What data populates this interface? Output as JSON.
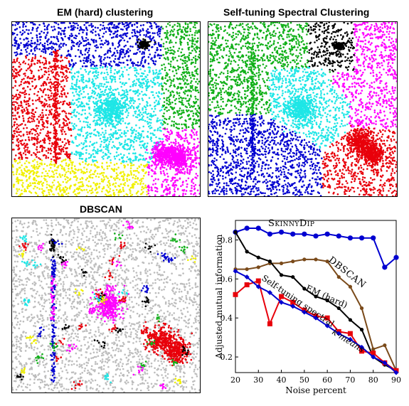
{
  "panels": {
    "em_title": "EM (hard) clustering",
    "spectral_title": "Self-tuning Spectral Clustering",
    "dbscan_title": "DBSCAN"
  },
  "colors": {
    "red": "#e8000b",
    "blue": "#0000d0",
    "green": "#12b01a",
    "cyan": "#1ee6e6",
    "magenta": "#ff00ff",
    "yellow": "#f0f000",
    "black": "#000000",
    "gray": "#bdbdbd",
    "brown": "#7a4a1a"
  },
  "chart_data": [
    {
      "type": "scatter",
      "title": "EM (hard) clustering",
      "clusters": [
        "red",
        "blue",
        "green",
        "cyan",
        "magenta",
        "yellow",
        "black"
      ]
    },
    {
      "type": "scatter",
      "title": "Self-tuning Spectral Clustering",
      "clusters": [
        "green",
        "blue",
        "black",
        "magenta",
        "cyan",
        "red"
      ]
    },
    {
      "type": "scatter",
      "title": "DBSCAN",
      "clusters": [
        "gray",
        "magenta",
        "blue",
        "red",
        "black",
        "cyan",
        "yellow",
        "green"
      ]
    },
    {
      "type": "line",
      "title": "",
      "xlabel": "Noise percent",
      "ylabel": "Adjusted mutual information",
      "xlim": [
        20,
        90
      ],
      "ylim": [
        0.12,
        0.9
      ],
      "x_ticks": [
        20,
        30,
        40,
        50,
        60,
        70,
        80,
        90
      ],
      "y_ticks": [
        0.2,
        0.4,
        0.6,
        0.8
      ],
      "grid": false,
      "x": [
        20,
        25,
        30,
        35,
        40,
        45,
        50,
        55,
        60,
        65,
        70,
        75,
        80,
        85,
        90
      ],
      "series": [
        {
          "name": "SkinnyDip",
          "color": "#0000d0",
          "marker": "circle",
          "values": [
            0.84,
            0.86,
            0.86,
            0.83,
            0.84,
            0.83,
            0.83,
            0.82,
            0.83,
            0.82,
            0.81,
            0.81,
            0.81,
            0.66,
            0.71
          ]
        },
        {
          "name": "DBSCAN",
          "color": "#7a4a1a",
          "marker": "circle",
          "values": [
            0.65,
            0.65,
            0.66,
            0.68,
            0.68,
            0.69,
            0.7,
            0.7,
            0.69,
            0.61,
            0.56,
            0.45,
            0.24,
            0.26,
            0.13
          ]
        },
        {
          "name": "EM (hard)",
          "color": "#000000",
          "marker": "circle",
          "values": [
            0.84,
            0.74,
            0.71,
            0.69,
            0.62,
            0.61,
            0.55,
            0.51,
            0.49,
            0.45,
            0.39,
            0.34,
            0.2,
            0.16,
            0.13
          ]
        },
        {
          "name": "Self-tuning spectral",
          "color": "#e8000b",
          "marker": "square",
          "values": [
            0.52,
            0.57,
            0.59,
            0.37,
            0.51,
            0.48,
            0.44,
            0.41,
            0.4,
            0.33,
            0.32,
            0.23,
            0.22,
            0.17,
            0.13
          ]
        },
        {
          "name": "k-means",
          "color": "#0000d0",
          "marker": "diamond",
          "values": [
            0.64,
            0.61,
            0.56,
            0.53,
            0.48,
            0.46,
            0.43,
            0.4,
            0.36,
            0.32,
            0.29,
            0.25,
            0.2,
            0.17,
            0.12
          ]
        }
      ],
      "labels": [
        {
          "text": "SkinnyDip"
        },
        {
          "text": "DBSCAN"
        },
        {
          "text": "EM (hard)"
        },
        {
          "text": "Self-tuning spectral"
        },
        {
          "text": "k-means"
        }
      ]
    }
  ]
}
